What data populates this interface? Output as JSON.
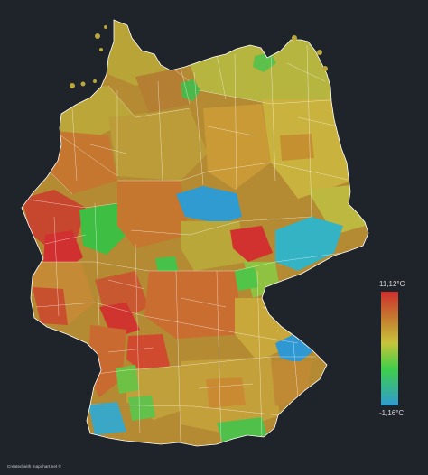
{
  "legend": {
    "max_label": "11,12°C",
    "min_label": "-1,16°C",
    "min_value": -1.16,
    "max_value": 11.12,
    "colors": [
      "#2f9bd0",
      "#3fcf4a",
      "#c9c43a",
      "#c5772f",
      "#d0302f"
    ]
  },
  "credit": "Created with mapchart.net ©",
  "map": {
    "background": "#1f232a",
    "border_color": "#ffffff"
  }
}
